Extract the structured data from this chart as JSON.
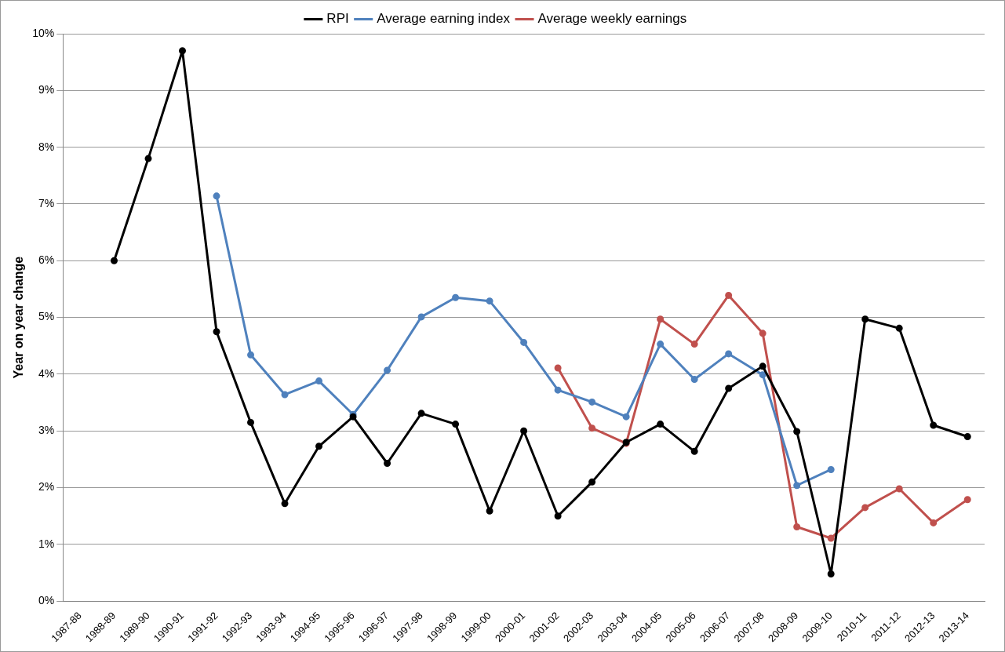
{
  "chart_data": {
    "type": "line",
    "ylabel": "Year on year change",
    "categories": [
      "1987-88",
      "1988-89",
      "1989-90",
      "1990-91",
      "1991-92",
      "1992-93",
      "1993-94",
      "1994-95",
      "1995-96",
      "1996-97",
      "1997-98",
      "1998-99",
      "1999-00",
      "2000-01",
      "2001-02",
      "2002-03",
      "2003-04",
      "2004-05",
      "2005-06",
      "2006-07",
      "2007-08",
      "2008-09",
      "2009-10",
      "2010-11",
      "2011-12",
      "2012-13",
      "2013-14"
    ],
    "series": [
      {
        "name": "RPI",
        "color": "#000000",
        "values": [
          null,
          6.0,
          7.8,
          9.7,
          4.75,
          3.15,
          1.72,
          2.73,
          3.25,
          2.43,
          3.31,
          3.12,
          1.59,
          3.0,
          1.5,
          2.1,
          2.8,
          3.12,
          2.64,
          3.75,
          4.14,
          2.99,
          0.48,
          4.97,
          4.81,
          3.1,
          2.9
        ]
      },
      {
        "name": "Average earning index",
        "color": "#4f81bd",
        "values": [
          null,
          null,
          null,
          null,
          7.14,
          4.34,
          3.64,
          3.88,
          3.29,
          4.07,
          5.01,
          5.35,
          5.29,
          4.56,
          3.72,
          3.51,
          3.25,
          4.53,
          3.91,
          4.36,
          3.99,
          2.04,
          2.32,
          null,
          null,
          null,
          null
        ]
      },
      {
        "name": "Average weekly earnings",
        "color": "#c0504d",
        "values": [
          null,
          null,
          null,
          null,
          null,
          null,
          null,
          null,
          null,
          null,
          null,
          null,
          null,
          null,
          4.11,
          3.05,
          2.78,
          4.97,
          4.53,
          5.39,
          4.72,
          1.31,
          1.11,
          1.65,
          1.98,
          1.38,
          1.79
        ]
      }
    ],
    "ylim": [
      0,
      10
    ],
    "yticks": [
      {
        "value": 0,
        "label": "0%"
      },
      {
        "value": 1,
        "label": "1%"
      },
      {
        "value": 2,
        "label": "2%"
      },
      {
        "value": 3,
        "label": "3%"
      },
      {
        "value": 4,
        "label": "4%"
      },
      {
        "value": 5,
        "label": "5%"
      },
      {
        "value": 6,
        "label": "6%"
      },
      {
        "value": 7,
        "label": "7%"
      },
      {
        "value": 8,
        "label": "8%"
      },
      {
        "value": 9,
        "label": "9%"
      },
      {
        "value": 10,
        "label": "10%"
      }
    ],
    "grid": "y",
    "legend": "top",
    "marker": "circle",
    "line_style": "solid"
  }
}
